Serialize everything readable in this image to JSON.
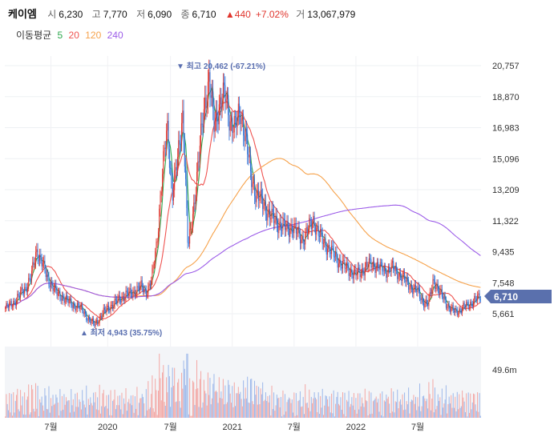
{
  "header": {
    "name": "케이엠",
    "open_label": "시",
    "open": "6,230",
    "high_label": "고",
    "high": "7,770",
    "low_label": "저",
    "low": "6,090",
    "close_label": "종",
    "close": "6,710",
    "change": "▲440",
    "change_pct": "+7.02%",
    "volume_label": "거",
    "volume": "13,067,979"
  },
  "ma_legend": {
    "label": "이동평균",
    "items": [
      {
        "text": "5",
        "color": "#2ea84e"
      },
      {
        "text": "20",
        "color": "#ef5350"
      },
      {
        "text": "120",
        "color": "#f6a24b"
      },
      {
        "text": "240",
        "color": "#9c5ce8"
      }
    ]
  },
  "annotations": {
    "high": "▼ 최고 20,462 (-67.21%)",
    "low": "▲ 최저 4,943 (35.75%)"
  },
  "current_price_tag": "6,710",
  "chart_data": {
    "type": "candlestick",
    "y_ticks": [
      "20,757",
      "18,870",
      "16,983",
      "15,096",
      "13,209",
      "11,322",
      "9,435",
      "7,548",
      "5,661"
    ],
    "y_range": [
      4200,
      21800
    ],
    "volume_tick": "49.6m",
    "volume_range_m": [
      0,
      82
    ],
    "x_tick_labels": [
      "7월",
      "2020",
      "7월",
      "2021",
      "7월",
      "2022",
      "7월"
    ],
    "x_tick_index": [
      45,
      101,
      163,
      224,
      285,
      346,
      407
    ],
    "close_series": [
      6000,
      6200,
      6500,
      6900,
      7300,
      8000,
      9500,
      8800,
      7800,
      7400,
      6800,
      6700,
      6400,
      6200,
      6100,
      5800,
      5300,
      5000,
      5400,
      5800,
      6100,
      6300,
      6600,
      6800,
      6900,
      7100,
      7300,
      7000,
      7700,
      10000,
      14000,
      17000,
      13000,
      15000,
      18000,
      9500,
      12000,
      15000,
      18000,
      20000,
      17000,
      18500,
      19000,
      17500,
      17000,
      18000,
      16500,
      14000,
      13000,
      12500,
      12000,
      11500,
      11200,
      11000,
      10800,
      11000,
      10500,
      10200,
      10800,
      11400,
      10500,
      10000,
      9600,
      9200,
      8800,
      8500,
      8300,
      8000,
      8200,
      8500,
      8700,
      8600,
      8400,
      8300,
      8500,
      8200,
      7900,
      7500,
      7200,
      7000,
      6400,
      6200,
      7800,
      7000,
      6600,
      6000,
      5800,
      5900,
      6100,
      6300,
      6500,
      6710
    ]
  }
}
